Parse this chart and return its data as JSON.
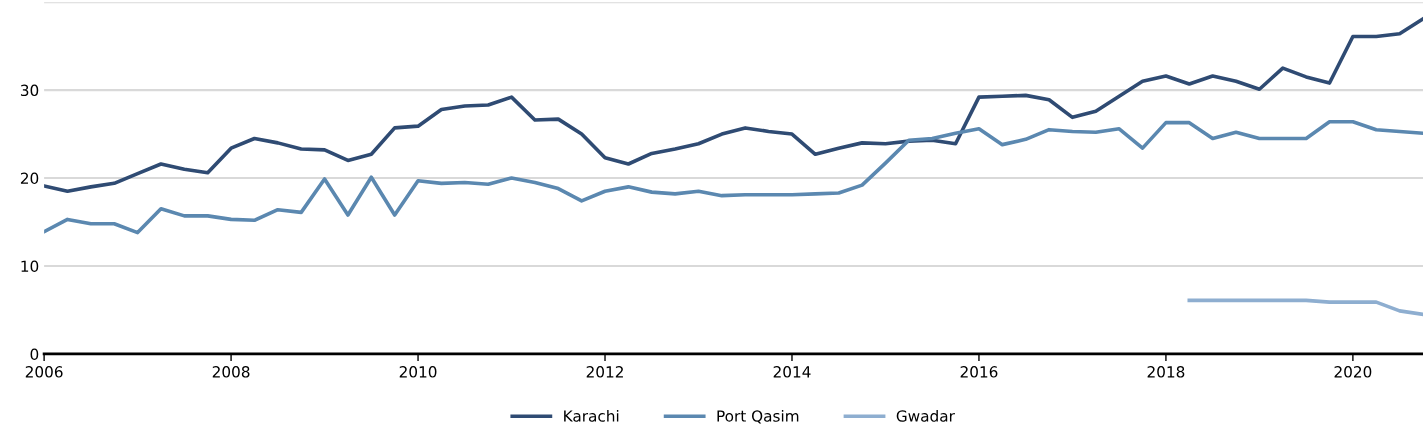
{
  "chart_data": {
    "type": "line",
    "x": [
      2006.0,
      2006.25,
      2006.5,
      2006.75,
      2007.0,
      2007.25,
      2007.5,
      2007.75,
      2008.0,
      2008.25,
      2008.5,
      2008.75,
      2009.0,
      2009.25,
      2009.5,
      2009.75,
      2010.0,
      2010.25,
      2010.5,
      2010.75,
      2011.0,
      2011.25,
      2011.5,
      2011.75,
      2012.0,
      2012.25,
      2012.5,
      2012.75,
      2013.0,
      2013.25,
      2013.5,
      2013.75,
      2014.0,
      2014.25,
      2014.5,
      2014.75,
      2015.0,
      2015.25,
      2015.5,
      2015.75,
      2016.0,
      2016.25,
      2016.5,
      2016.75,
      2017.0,
      2017.25,
      2017.5,
      2017.75,
      2018.0,
      2018.25,
      2018.5,
      2018.75,
      2019.0,
      2019.25,
      2019.5,
      2019.75,
      2020.0,
      2020.25,
      2020.5,
      2020.75
    ],
    "series": [
      {
        "name": "Karachi",
        "color": "#2f4b73",
        "values": [
          19.1,
          18.5,
          19.0,
          19.4,
          20.5,
          21.6,
          21.0,
          20.6,
          23.4,
          24.5,
          24.0,
          23.3,
          23.2,
          22.0,
          22.7,
          25.7,
          25.9,
          27.8,
          28.2,
          28.3,
          29.2,
          26.6,
          26.7,
          25.0,
          22.3,
          21.6,
          22.8,
          23.3,
          23.9,
          25.0,
          25.7,
          25.3,
          25.0,
          22.7,
          23.4,
          24.0,
          23.9,
          24.2,
          24.3,
          23.9,
          29.2,
          29.3,
          29.4,
          28.9,
          26.9,
          27.6,
          29.3,
          31.0,
          31.6,
          30.7,
          31.6,
          31.0,
          30.1,
          32.5,
          31.5,
          30.8,
          36.1,
          36.1,
          36.4,
          38.1
        ]
      },
      {
        "name": "Port Qasim",
        "color": "#5b88b0",
        "values": [
          13.9,
          15.3,
          14.8,
          14.8,
          13.8,
          16.5,
          15.7,
          15.7,
          15.3,
          15.2,
          16.4,
          16.1,
          19.9,
          15.8,
          20.1,
          15.8,
          19.7,
          19.4,
          19.5,
          19.3,
          20.0,
          19.5,
          18.8,
          17.4,
          18.5,
          19.0,
          18.4,
          18.2,
          18.5,
          18.0,
          18.1,
          18.1,
          18.1,
          18.2,
          18.3,
          19.2,
          21.7,
          24.3,
          24.5,
          25.1,
          25.6,
          23.8,
          24.4,
          25.5,
          25.3,
          25.2,
          25.6,
          23.4,
          26.3,
          26.3,
          24.5,
          25.2,
          24.5,
          24.5,
          24.5,
          26.4,
          26.4,
          25.5,
          25.3,
          25.1
        ]
      },
      {
        "name": "Gwadar",
        "color": "#8eaed0",
        "values": [
          null,
          null,
          null,
          null,
          null,
          null,
          null,
          null,
          null,
          null,
          null,
          null,
          null,
          null,
          null,
          null,
          null,
          null,
          null,
          null,
          null,
          null,
          null,
          null,
          null,
          null,
          null,
          null,
          null,
          null,
          null,
          null,
          null,
          null,
          null,
          null,
          null,
          null,
          null,
          null,
          null,
          null,
          null,
          null,
          null,
          null,
          null,
          null,
          null,
          6.1,
          6.1,
          6.1,
          6.1,
          6.1,
          6.1,
          5.9,
          5.9,
          5.9,
          4.9,
          4.5
        ]
      }
    ],
    "xlim": [
      2006,
      2020.75
    ],
    "xticks": [
      2006,
      2008,
      2010,
      2012,
      2014,
      2016,
      2018,
      2020
    ],
    "ylim": [
      0,
      40
    ],
    "yticks": [
      0,
      10,
      20,
      30,
      {
        "value": 40,
        "label": null
      }
    ],
    "grid": "y",
    "legend": "bottom",
    "marker": "none",
    "line_style": "solid"
  }
}
